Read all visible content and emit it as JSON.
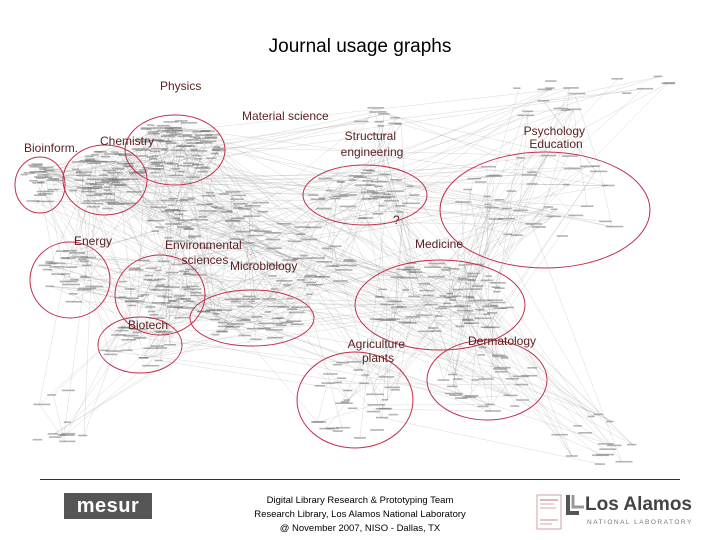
{
  "title": "Journal usage graphs",
  "clusters": [
    {
      "label": "Physics"
    },
    {
      "label": "Material science"
    },
    {
      "label": "Structural engineering"
    },
    {
      "label": "Psychology Education"
    },
    {
      "label": "Bioinform."
    },
    {
      "label": "Chemistry"
    },
    {
      "label": "Energy"
    },
    {
      "label": "Environmental sciences"
    },
    {
      "label": "Microbiology"
    },
    {
      "label": "Medicine"
    },
    {
      "label": "?"
    },
    {
      "label": "Biotech"
    },
    {
      "label": "Agriculture plants"
    },
    {
      "label": "Dermatology"
    }
  ],
  "footer": {
    "line1": "Digital Library Research & Prototyping Team",
    "line2": "Research Library, Los Alamos National Laboratory",
    "line3": "@ November 2007, NISO - Dallas, TX"
  },
  "logos": {
    "left": "mesur",
    "right": "Los Alamos",
    "right_sub": "NATIONAL LABORATORY"
  },
  "colors": {
    "ellipse": "#c0304a",
    "label": "#5a1f1f",
    "edges": "#999999"
  }
}
